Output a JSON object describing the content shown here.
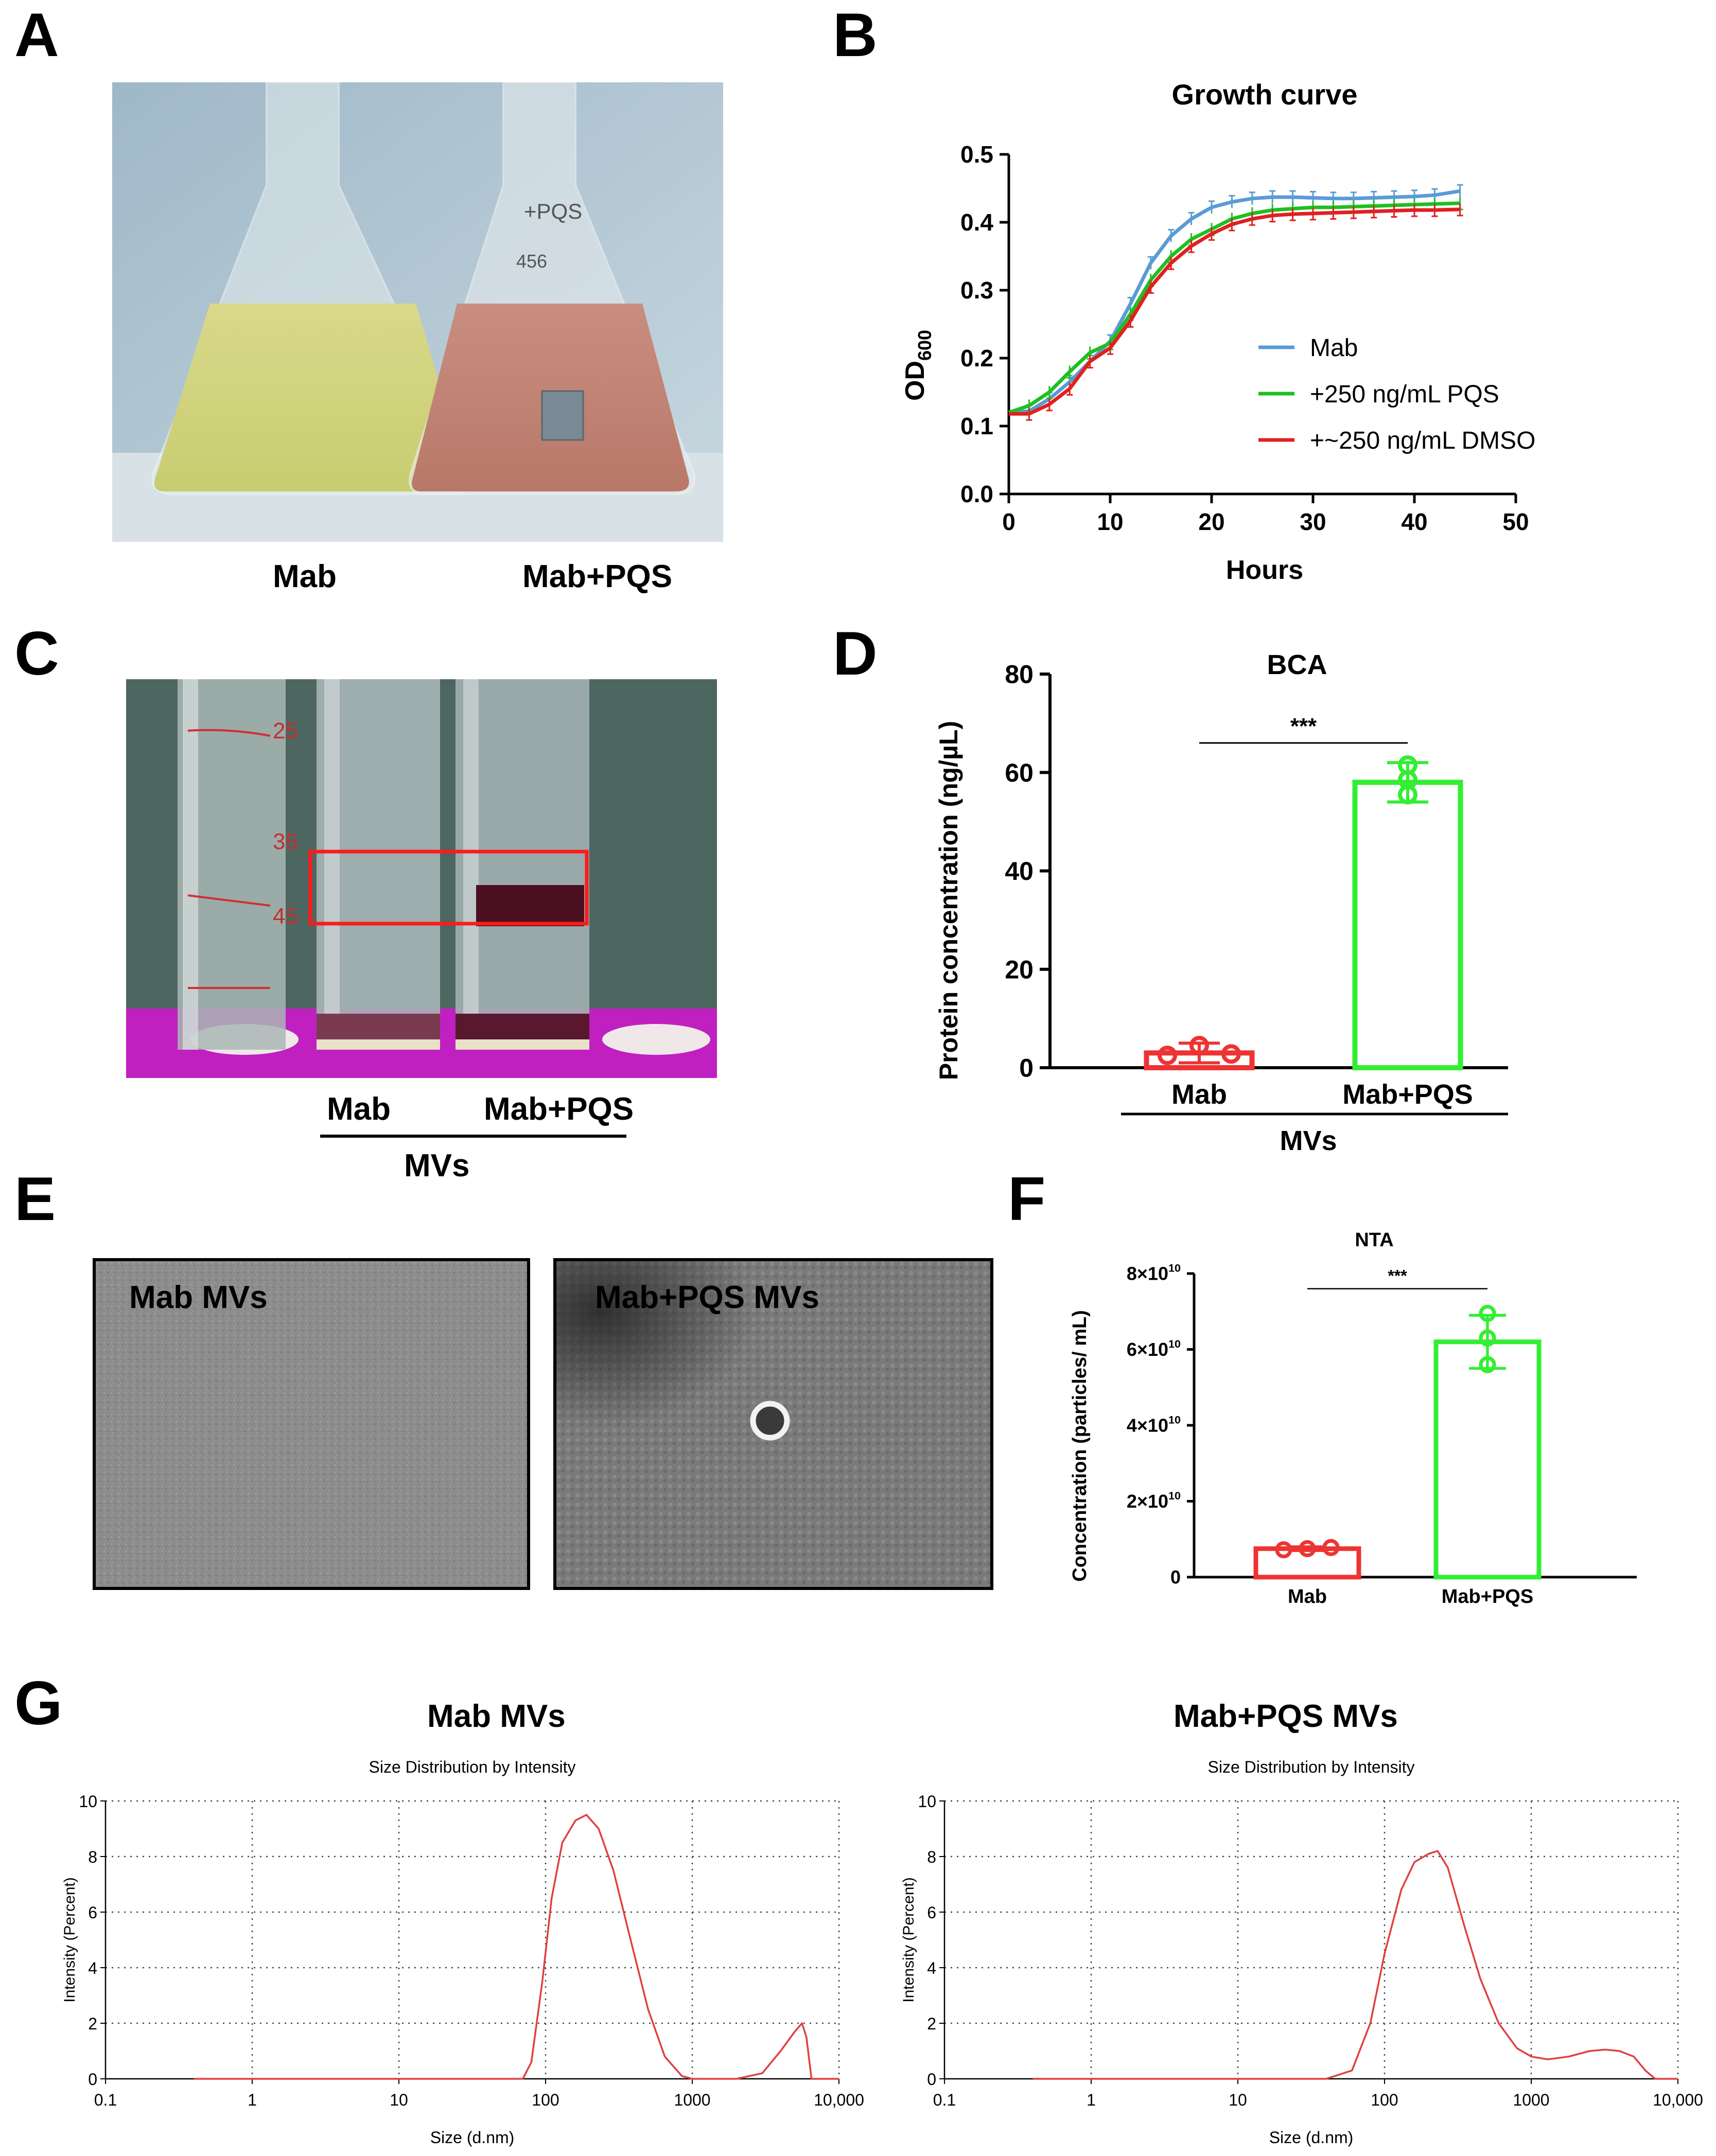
{
  "panels": {
    "a": {
      "letter": "A",
      "labels": [
        "Mab",
        "Mab+PQS"
      ],
      "flask_labels": [
        "+PQS",
        "456"
      ]
    },
    "b": {
      "letter": "B"
    },
    "c": {
      "letter": "C",
      "labels": [
        "Mab",
        "Mab+PQS"
      ],
      "group_label": "MVs",
      "tube_marks": [
        "25",
        "35",
        "45"
      ]
    },
    "d": {
      "letter": "D"
    },
    "e": {
      "letter": "E",
      "labels": [
        "Mab MVs",
        "Mab+PQS MVs"
      ]
    },
    "f": {
      "letter": "F"
    },
    "g": {
      "letter": "G",
      "titles": [
        "Mab  MVs",
        "Mab+PQS MVs"
      ]
    }
  },
  "colors": {
    "mab_blue": "#5b9bd5",
    "pqs_green": "#1fbf1f",
    "dmso_red": "#e02020",
    "bar_red": "#ee3333",
    "bar_green": "#33ee33",
    "dls_red": "#e04040"
  },
  "chart_data": [
    {
      "id": "growth",
      "type": "line",
      "title": "Growth curve",
      "xlabel": "Hours",
      "ylabel": "OD",
      "ylabel_sub": "600",
      "xlim": [
        0,
        50
      ],
      "ylim": [
        0,
        0.5
      ],
      "xticks": [
        "0",
        "10",
        "20",
        "30",
        "40",
        "50"
      ],
      "yticks": [
        "0.0",
        "0.1",
        "0.2",
        "0.3",
        "0.4",
        "0.5"
      ],
      "legend_position": "right",
      "x": [
        0,
        2,
        4,
        6,
        8,
        10,
        12,
        14,
        16,
        18,
        20,
        22,
        24,
        26,
        28,
        30,
        32,
        34,
        36,
        38,
        40,
        42,
        44.5
      ],
      "series": [
        {
          "name": "Mab",
          "color": "#5b9bd5",
          "values": [
            0.12,
            0.122,
            0.14,
            0.165,
            0.195,
            0.225,
            0.28,
            0.34,
            0.38,
            0.405,
            0.422,
            0.43,
            0.435,
            0.437,
            0.437,
            0.436,
            0.435,
            0.435,
            0.436,
            0.437,
            0.438,
            0.44,
            0.446
          ]
        },
        {
          "name": "+250 ng/mL PQS",
          "color": "#1fbf1f",
          "values": [
            0.12,
            0.13,
            0.15,
            0.18,
            0.208,
            0.222,
            0.265,
            0.315,
            0.35,
            0.375,
            0.39,
            0.405,
            0.413,
            0.418,
            0.42,
            0.422,
            0.422,
            0.423,
            0.424,
            0.425,
            0.426,
            0.427,
            0.428
          ]
        },
        {
          "name": "+~250 ng/mL DMSO",
          "color": "#e02020",
          "values": [
            0.118,
            0.118,
            0.132,
            0.155,
            0.195,
            0.215,
            0.255,
            0.305,
            0.34,
            0.365,
            0.383,
            0.397,
            0.405,
            0.41,
            0.412,
            0.413,
            0.414,
            0.415,
            0.416,
            0.417,
            0.418,
            0.418,
            0.419
          ]
        }
      ]
    },
    {
      "id": "bca",
      "type": "bar",
      "title": "BCA",
      "ylabel": "Protein concentration (ng/µL)",
      "group_label": "MVs",
      "significance": "***",
      "ylim": [
        0,
        80
      ],
      "yticks": [
        "0",
        "20",
        "40",
        "60",
        "80"
      ],
      "categories": [
        "Mab",
        "Mab+PQS"
      ],
      "values": [
        3,
        58
      ],
      "error": [
        2,
        4
      ],
      "points": [
        [
          2.5,
          4.5,
          2.8
        ],
        [
          55.5,
          58.5,
          61.5
        ]
      ],
      "colors": [
        "#ee3333",
        "#33ee33"
      ]
    },
    {
      "id": "nta",
      "type": "bar",
      "title": "NTA",
      "ylabel": "Concentration (particles/ mL)",
      "significance": "***",
      "ylim": [
        0,
        80000000000.0
      ],
      "yticks_base": [
        "0",
        "2×10",
        "4×10",
        "6×10",
        "8×10"
      ],
      "ytick_exp": "10",
      "categories": [
        "Mab",
        "Mab+PQS"
      ],
      "values": [
        7500000000.0,
        62000000000.0
      ],
      "error": [
        500000000.0,
        7000000000.0
      ],
      "points": [
        [
          7200000000.0,
          7500000000.0,
          7800000000.0
        ],
        [
          56000000000.0,
          63000000000.0,
          69500000000.0
        ]
      ],
      "colors": [
        "#ee3333",
        "#33ee33"
      ]
    },
    {
      "id": "dls_mab",
      "type": "line",
      "title": "Size Distribution by Intensity",
      "xlabel": "Size (d.nm)",
      "ylabel": "Intensity (Percent)",
      "xscale": "log",
      "xlim": [
        0.1,
        10000
      ],
      "ylim": [
        0,
        10
      ],
      "xticks": [
        "0.1",
        "1",
        "10",
        "100",
        "1000",
        "10,000"
      ],
      "yticks": [
        "0",
        "2",
        "4",
        "6",
        "8",
        "10"
      ],
      "grid": true,
      "x": [
        0.4,
        50,
        70,
        80,
        95,
        110,
        130,
        160,
        190,
        230,
        290,
        380,
        500,
        650,
        850,
        1000,
        2000,
        3000,
        4000,
        5000,
        5600,
        6000,
        6500,
        7000,
        10000
      ],
      "values": [
        0,
        0,
        0,
        0.6,
        3.5,
        6.5,
        8.5,
        9.3,
        9.5,
        9.0,
        7.5,
        5.0,
        2.5,
        0.8,
        0.1,
        0,
        0,
        0.2,
        1.0,
        1.7,
        2.0,
        1.5,
        0,
        0,
        0
      ]
    },
    {
      "id": "dls_pqs",
      "type": "line",
      "title": "Size Distribution by Intensity",
      "xlabel": "Size (d.nm)",
      "ylabel": "Intensity (Percent)",
      "xscale": "log",
      "xlim": [
        0.1,
        10000
      ],
      "ylim": [
        0,
        10
      ],
      "xticks": [
        "0.1",
        "1",
        "10",
        "100",
        "1000",
        "10,000"
      ],
      "yticks": [
        "0",
        "2",
        "4",
        "6",
        "8",
        "10"
      ],
      "grid": true,
      "x": [
        0.4,
        40,
        60,
        80,
        100,
        130,
        160,
        200,
        230,
        270,
        350,
        450,
        600,
        800,
        1000,
        1300,
        1800,
        2500,
        3200,
        4000,
        5000,
        6000,
        7000,
        10000
      ],
      "values": [
        0,
        0,
        0.3,
        2.0,
        4.5,
        6.8,
        7.8,
        8.1,
        8.2,
        7.6,
        5.5,
        3.6,
        2.0,
        1.1,
        0.8,
        0.7,
        0.8,
        1.0,
        1.05,
        1.0,
        0.8,
        0.3,
        0,
        0
      ]
    }
  ]
}
